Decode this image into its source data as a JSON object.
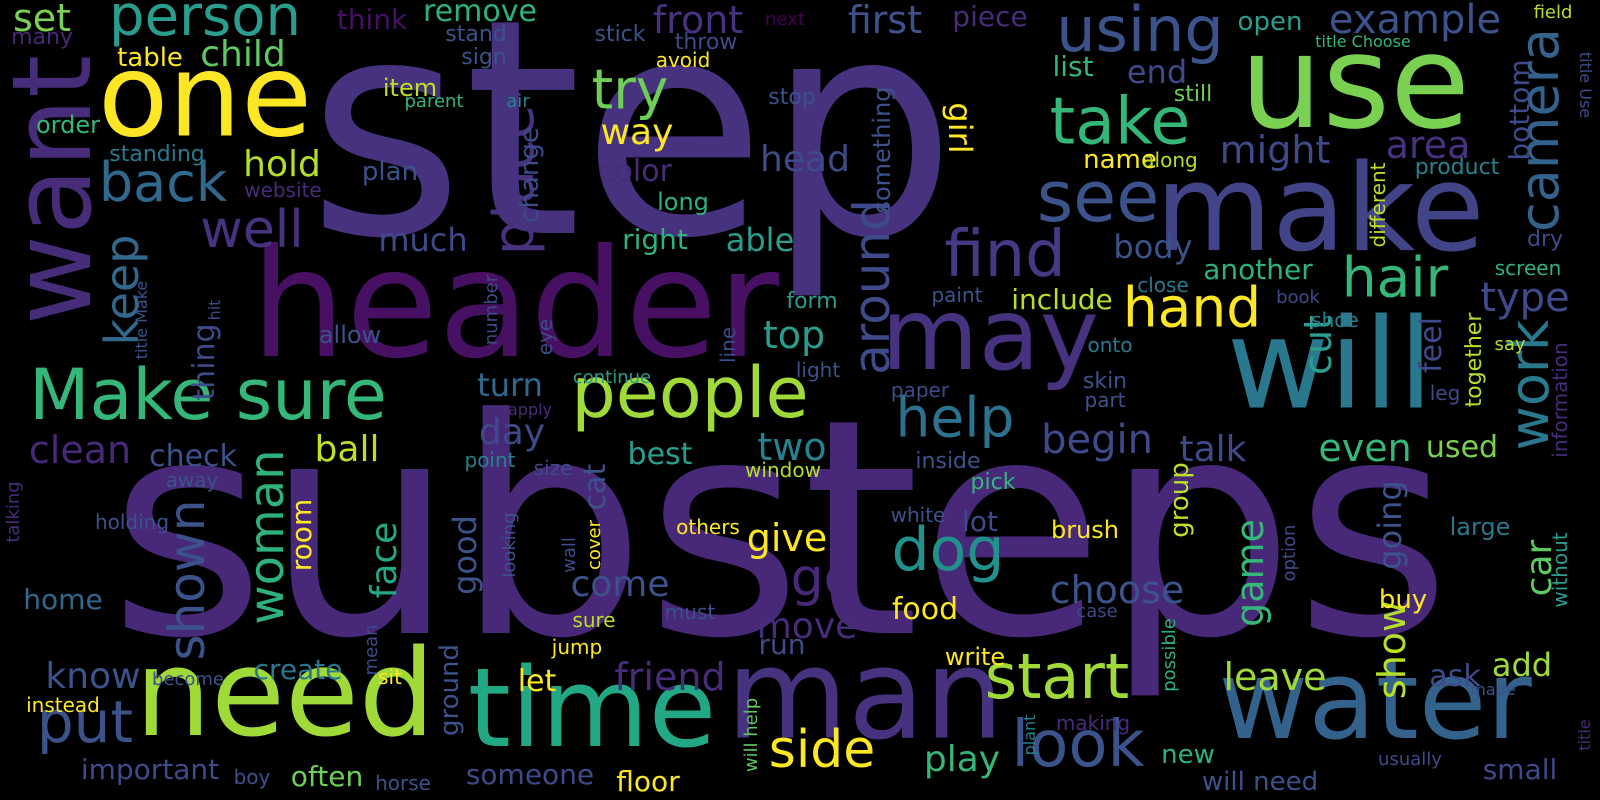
{
  "palette": {
    "background": "#000000",
    "colors": [
      "#440154",
      "#46327e",
      "#365c8d",
      "#277f8e",
      "#1fa187",
      "#4ac16d",
      "#a0da39",
      "#fde725"
    ]
  },
  "words": [
    {
      "text": "step",
      "color": "#46327e"
    },
    {
      "text": "substeps",
      "color": "#482878"
    },
    {
      "text": "header",
      "color": "#471063"
    },
    {
      "text": "use",
      "color": "#7ad151"
    },
    {
      "text": "will",
      "color": "#2a788e"
    },
    {
      "text": "make",
      "color": "#414487"
    },
    {
      "text": "man",
      "color": "#46327e"
    },
    {
      "text": "water",
      "color": "#33638d"
    },
    {
      "text": "time",
      "color": "#22a884"
    },
    {
      "text": "need",
      "color": "#a0da39"
    },
    {
      "text": "one",
      "color": "#fde725"
    },
    {
      "text": "want",
      "color": "#472c7a"
    },
    {
      "text": "may",
      "color": "#46327e"
    },
    {
      "text": "people",
      "color": "#a0da39"
    },
    {
      "text": "Make sure",
      "color": "#35b779"
    },
    {
      "text": "person",
      "color": "#2a9d8f"
    },
    {
      "text": "take",
      "color": "#35b779"
    },
    {
      "text": "see",
      "color": "#3b528b"
    },
    {
      "text": "find",
      "color": "#443983"
    },
    {
      "text": "using",
      "color": "#3b528b"
    },
    {
      "text": "start",
      "color": "#a0da39"
    },
    {
      "text": "look",
      "color": "#3b528b"
    },
    {
      "text": "hand",
      "color": "#fde725"
    },
    {
      "text": "hair",
      "color": "#35b779"
    },
    {
      "text": "help",
      "color": "#2c728e"
    },
    {
      "text": "dog",
      "color": "#21918c"
    },
    {
      "text": "put",
      "color": "#3b528b"
    },
    {
      "text": "side",
      "color": "#fde725"
    },
    {
      "text": "back",
      "color": "#31688e"
    },
    {
      "text": "camera",
      "color": "#33638d"
    },
    {
      "text": "work",
      "color": "#2a788e"
    },
    {
      "text": "place",
      "color": "#46327e"
    },
    {
      "text": "around",
      "color": "#3e4a89"
    },
    {
      "text": "try",
      "color": "#6ece58"
    },
    {
      "text": "go",
      "color": "#482878"
    },
    {
      "text": "example",
      "color": "#3b528b"
    },
    {
      "text": "woman",
      "color": "#2db27d"
    },
    {
      "text": "shown",
      "color": "#3b528b"
    },
    {
      "text": "well",
      "color": "#46327e"
    },
    {
      "text": "keep",
      "color": "#31688e"
    },
    {
      "text": "first",
      "color": "#3b528b"
    },
    {
      "text": "front",
      "color": "#46327e"
    },
    {
      "text": "choose",
      "color": "#3b528b"
    },
    {
      "text": "play",
      "color": "#35b779"
    },
    {
      "text": "begin",
      "color": "#3e4a89"
    },
    {
      "text": "two",
      "color": "#26828e"
    },
    {
      "text": "head",
      "color": "#3e4a89"
    },
    {
      "text": "friend",
      "color": "#472c7a"
    },
    {
      "text": "set",
      "color": "#7ad151"
    },
    {
      "text": "child",
      "color": "#5ec962"
    },
    {
      "text": "top",
      "color": "#2a9d8f"
    },
    {
      "text": "even",
      "color": "#35b779"
    },
    {
      "text": "talk",
      "color": "#3e4a89"
    },
    {
      "text": "cut",
      "color": "#2a9d8f"
    },
    {
      "text": "leave",
      "color": "#a0da39"
    },
    {
      "text": "ball",
      "color": "#bddf26"
    },
    {
      "text": "give",
      "color": "#fde725"
    },
    {
      "text": "move",
      "color": "#472c7a"
    },
    {
      "text": "come",
      "color": "#3b528b"
    },
    {
      "text": "clean",
      "color": "#482878"
    },
    {
      "text": "hold",
      "color": "#b5de2b"
    },
    {
      "text": "face",
      "color": "#22a884"
    },
    {
      "text": "game",
      "color": "#35b779"
    },
    {
      "text": "show",
      "color": "#b5de2b"
    },
    {
      "text": "going",
      "color": "#3b528b"
    },
    {
      "text": "type",
      "color": "#3e4a89"
    },
    {
      "text": "car",
      "color": "#5ec962"
    },
    {
      "text": "know",
      "color": "#3b528b"
    },
    {
      "text": "day",
      "color": "#3e4a89"
    },
    {
      "text": "might",
      "color": "#3e4a89"
    },
    {
      "text": "area",
      "color": "#46327e"
    },
    {
      "text": "way",
      "color": "#fde725"
    },
    {
      "text": "food",
      "color": "#fde725"
    },
    {
      "text": "add",
      "color": "#a0da39"
    },
    {
      "text": "used",
      "color": "#7ad151"
    },
    {
      "text": "body",
      "color": "#3b528b"
    },
    {
      "text": "much",
      "color": "#3e4a89"
    },
    {
      "text": "able",
      "color": "#2a9d8f"
    },
    {
      "text": "right",
      "color": "#2db27d"
    },
    {
      "text": "girl",
      "color": "#fde725"
    },
    {
      "text": "include",
      "color": "#b5de2b"
    },
    {
      "text": "another",
      "color": "#2db27d"
    },
    {
      "text": "end",
      "color": "#3e4a89"
    },
    {
      "text": "remove",
      "color": "#2db27d"
    },
    {
      "text": "good",
      "color": "#3b528b"
    },
    {
      "text": "room",
      "color": "#fde725"
    },
    {
      "text": "run",
      "color": "#3e4a89"
    },
    {
      "text": "ask",
      "color": "#3e4a89"
    },
    {
      "text": "bottom",
      "color": "#3e4a89"
    },
    {
      "text": "feel",
      "color": "#3e4a89"
    },
    {
      "text": "check",
      "color": "#3b528b"
    },
    {
      "text": "thing",
      "color": "#3e4a89"
    },
    {
      "text": "best",
      "color": "#2a9d8f"
    },
    {
      "text": "turn",
      "color": "#31688e"
    },
    {
      "text": "cat",
      "color": "#3b528b"
    },
    {
      "text": "create",
      "color": "#2a788e"
    },
    {
      "text": "often",
      "color": "#6ece58"
    },
    {
      "text": "someone",
      "color": "#3e4a89"
    },
    {
      "text": "important",
      "color": "#3e4a89"
    },
    {
      "text": "floor",
      "color": "#fde725"
    },
    {
      "text": "home",
      "color": "#31688e"
    },
    {
      "text": "new",
      "color": "#2db27d"
    },
    {
      "text": "will need",
      "color": "#3b528b"
    },
    {
      "text": "small",
      "color": "#3e4a89"
    },
    {
      "text": "let",
      "color": "#fde725"
    },
    {
      "text": "list",
      "color": "#35b779"
    },
    {
      "text": "open",
      "color": "#2a9d8f"
    },
    {
      "text": "name",
      "color": "#fde725"
    },
    {
      "text": "change",
      "color": "#3e4a89"
    },
    {
      "text": "color",
      "color": "#472c7a"
    },
    {
      "text": "long",
      "color": "#2db27d"
    },
    {
      "text": "table",
      "color": "#fde725"
    },
    {
      "text": "lot",
      "color": "#3e4a89"
    },
    {
      "text": "ground",
      "color": "#3b528b"
    },
    {
      "text": "group",
      "color": "#bddf26"
    },
    {
      "text": "brush",
      "color": "#fde725"
    },
    {
      "text": "buy",
      "color": "#fde725"
    },
    {
      "text": "large",
      "color": "#2a788e"
    },
    {
      "text": "write",
      "color": "#fde725"
    },
    {
      "text": "form",
      "color": "#2a9d8f"
    },
    {
      "text": "allow",
      "color": "#3b528b"
    },
    {
      "text": "something",
      "color": "#3b528b"
    },
    {
      "text": "piece",
      "color": "#472c7a"
    },
    {
      "text": "think",
      "color": "#471063"
    },
    {
      "text": "item",
      "color": "#bddf26"
    },
    {
      "text": "plan",
      "color": "#3b528b"
    },
    {
      "text": "standing",
      "color": "#2a788e"
    },
    {
      "text": "order",
      "color": "#35b779"
    },
    {
      "text": "many",
      "color": "#482878"
    },
    {
      "text": "stand",
      "color": "#3b528b"
    },
    {
      "text": "sign",
      "color": "#3b528b"
    },
    {
      "text": "stick",
      "color": "#3b528b"
    },
    {
      "text": "throw",
      "color": "#3e4a89"
    },
    {
      "text": "avoid",
      "color": "#fde725"
    },
    {
      "text": "next",
      "color": "#440154"
    },
    {
      "text": "stop",
      "color": "#3b528b"
    },
    {
      "text": "still",
      "color": "#6ece58"
    },
    {
      "text": "air",
      "color": "#26828e"
    },
    {
      "text": "parent",
      "color": "#35b779"
    },
    {
      "text": "website",
      "color": "#472c7a"
    },
    {
      "text": "along",
      "color": "#b5de2b"
    },
    {
      "text": "product",
      "color": "#26828e"
    },
    {
      "text": "different",
      "color": "#bddf26"
    },
    {
      "text": "dry",
      "color": "#3e4a89"
    },
    {
      "text": "screen",
      "color": "#2db27d"
    },
    {
      "text": "close",
      "color": "#2a788e"
    },
    {
      "text": "book",
      "color": "#3e4a89"
    },
    {
      "text": "shoe",
      "color": "#26828e"
    },
    {
      "text": "say",
      "color": "#b5de2b"
    },
    {
      "text": "together",
      "color": "#b5de2b"
    },
    {
      "text": "information",
      "color": "#472c7a"
    },
    {
      "text": "leg",
      "color": "#3e4a89"
    },
    {
      "text": "paint",
      "color": "#3b528b"
    },
    {
      "text": "onto",
      "color": "#2a788e"
    },
    {
      "text": "skin",
      "color": "#3b528b"
    },
    {
      "text": "part",
      "color": "#3b528b"
    },
    {
      "text": "paper",
      "color": "#3e4a89"
    },
    {
      "text": "light",
      "color": "#3b528b"
    },
    {
      "text": "eye",
      "color": "#3e4a89"
    },
    {
      "text": "number",
      "color": "#3e4a89"
    },
    {
      "text": "line",
      "color": "#3e4a89"
    },
    {
      "text": "continue",
      "color": "#2a9d8f"
    },
    {
      "text": "apply",
      "color": "#472c7a"
    },
    {
      "text": "point",
      "color": "#26828e"
    },
    {
      "text": "size",
      "color": "#3e4a89"
    },
    {
      "text": "window",
      "color": "#b5de2b"
    },
    {
      "text": "inside",
      "color": "#3b528b"
    },
    {
      "text": "pick",
      "color": "#35b779"
    },
    {
      "text": "white",
      "color": "#3b528b"
    },
    {
      "text": "others",
      "color": "#fde725"
    },
    {
      "text": "wall",
      "color": "#3e4a89"
    },
    {
      "text": "cover",
      "color": "#fde725"
    },
    {
      "text": "looking",
      "color": "#3b528b"
    },
    {
      "text": "holding",
      "color": "#3b528b"
    },
    {
      "text": "away",
      "color": "#3b528b"
    },
    {
      "text": "talking",
      "color": "#472c7a"
    },
    {
      "text": "mean",
      "color": "#3e4a89"
    },
    {
      "text": "sure",
      "color": "#bddf26"
    },
    {
      "text": "must",
      "color": "#3b528b"
    },
    {
      "text": "jump",
      "color": "#fde725"
    },
    {
      "text": "sit",
      "color": "#fde725"
    },
    {
      "text": "become",
      "color": "#3b528b"
    },
    {
      "text": "boy",
      "color": "#3b528b"
    },
    {
      "text": "horse",
      "color": "#3b528b"
    },
    {
      "text": "instead",
      "color": "#fde725"
    },
    {
      "text": "will help",
      "color": "#5ec962"
    },
    {
      "text": "possible",
      "color": "#2db27d"
    },
    {
      "text": "plant",
      "color": "#26828e"
    },
    {
      "text": "making",
      "color": "#472c7a"
    },
    {
      "text": "case",
      "color": "#3e4a89"
    },
    {
      "text": "option",
      "color": "#3e4a89"
    },
    {
      "text": "without",
      "color": "#2a9d8f"
    },
    {
      "text": "usually",
      "color": "#3e4a89"
    },
    {
      "text": "made",
      "color": "#3b528b"
    },
    {
      "text": "title",
      "color": "#472c7a"
    },
    {
      "text": "field",
      "color": "#b5de2b"
    },
    {
      "text": "title Choose",
      "color": "#35b779"
    },
    {
      "text": "title Use",
      "color": "#3e4a89"
    },
    {
      "text": "title Make",
      "color": "#3b528b"
    },
    {
      "text": "hit",
      "color": "#3e4a89"
    }
  ]
}
